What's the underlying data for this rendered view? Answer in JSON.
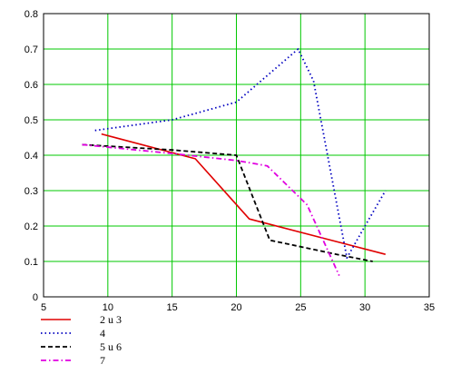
{
  "chart_data": {
    "type": "line",
    "title": "",
    "xlabel": "",
    "ylabel": "",
    "xlim": [
      5,
      35
    ],
    "ylim": [
      0,
      0.8
    ],
    "grid": true,
    "grid_color": "#00c800",
    "legend_placement": "bottom-left",
    "x_ticks": [
      5,
      10,
      15,
      20,
      25,
      30,
      35
    ],
    "y_ticks": [
      0,
      0.1,
      0.2,
      0.3,
      0.4,
      0.5,
      0.6,
      0.7,
      0.8
    ],
    "x_tick_labels": [
      "5",
      "10",
      "15",
      "20",
      "25",
      "30",
      "35"
    ],
    "y_tick_labels": [
      "0",
      "0.1",
      "0.2",
      "0.3",
      "0.4",
      "0.5",
      "0.6",
      "0.7",
      "0.8"
    ],
    "series": [
      {
        "name": "2 u 3",
        "color": "#e00000",
        "dash": "solid",
        "x": [
          9.5,
          16.8,
          21,
          31.6
        ],
        "y": [
          0.46,
          0.39,
          0.22,
          0.12
        ]
      },
      {
        "name": "4",
        "color": "#0000c0",
        "dash": "dot",
        "x": [
          9,
          15,
          20,
          24.8,
          26,
          28.6,
          30,
          31.6
        ],
        "y": [
          0.47,
          0.5,
          0.55,
          0.7,
          0.61,
          0.11,
          0.2,
          0.3
        ]
      },
      {
        "name": "5 u 6",
        "color": "#000000",
        "dash": "dash",
        "x": [
          8,
          15,
          20,
          22.6,
          27.8,
          30.6
        ],
        "y": [
          0.43,
          0.415,
          0.4,
          0.16,
          0.12,
          0.1
        ]
      },
      {
        "name": "7",
        "color": "#e000e0",
        "dash": "dashdot",
        "x": [
          8,
          15,
          20,
          22.4,
          25.5,
          28
        ],
        "y": [
          0.43,
          0.405,
          0.385,
          0.37,
          0.26,
          0.06
        ]
      }
    ]
  }
}
